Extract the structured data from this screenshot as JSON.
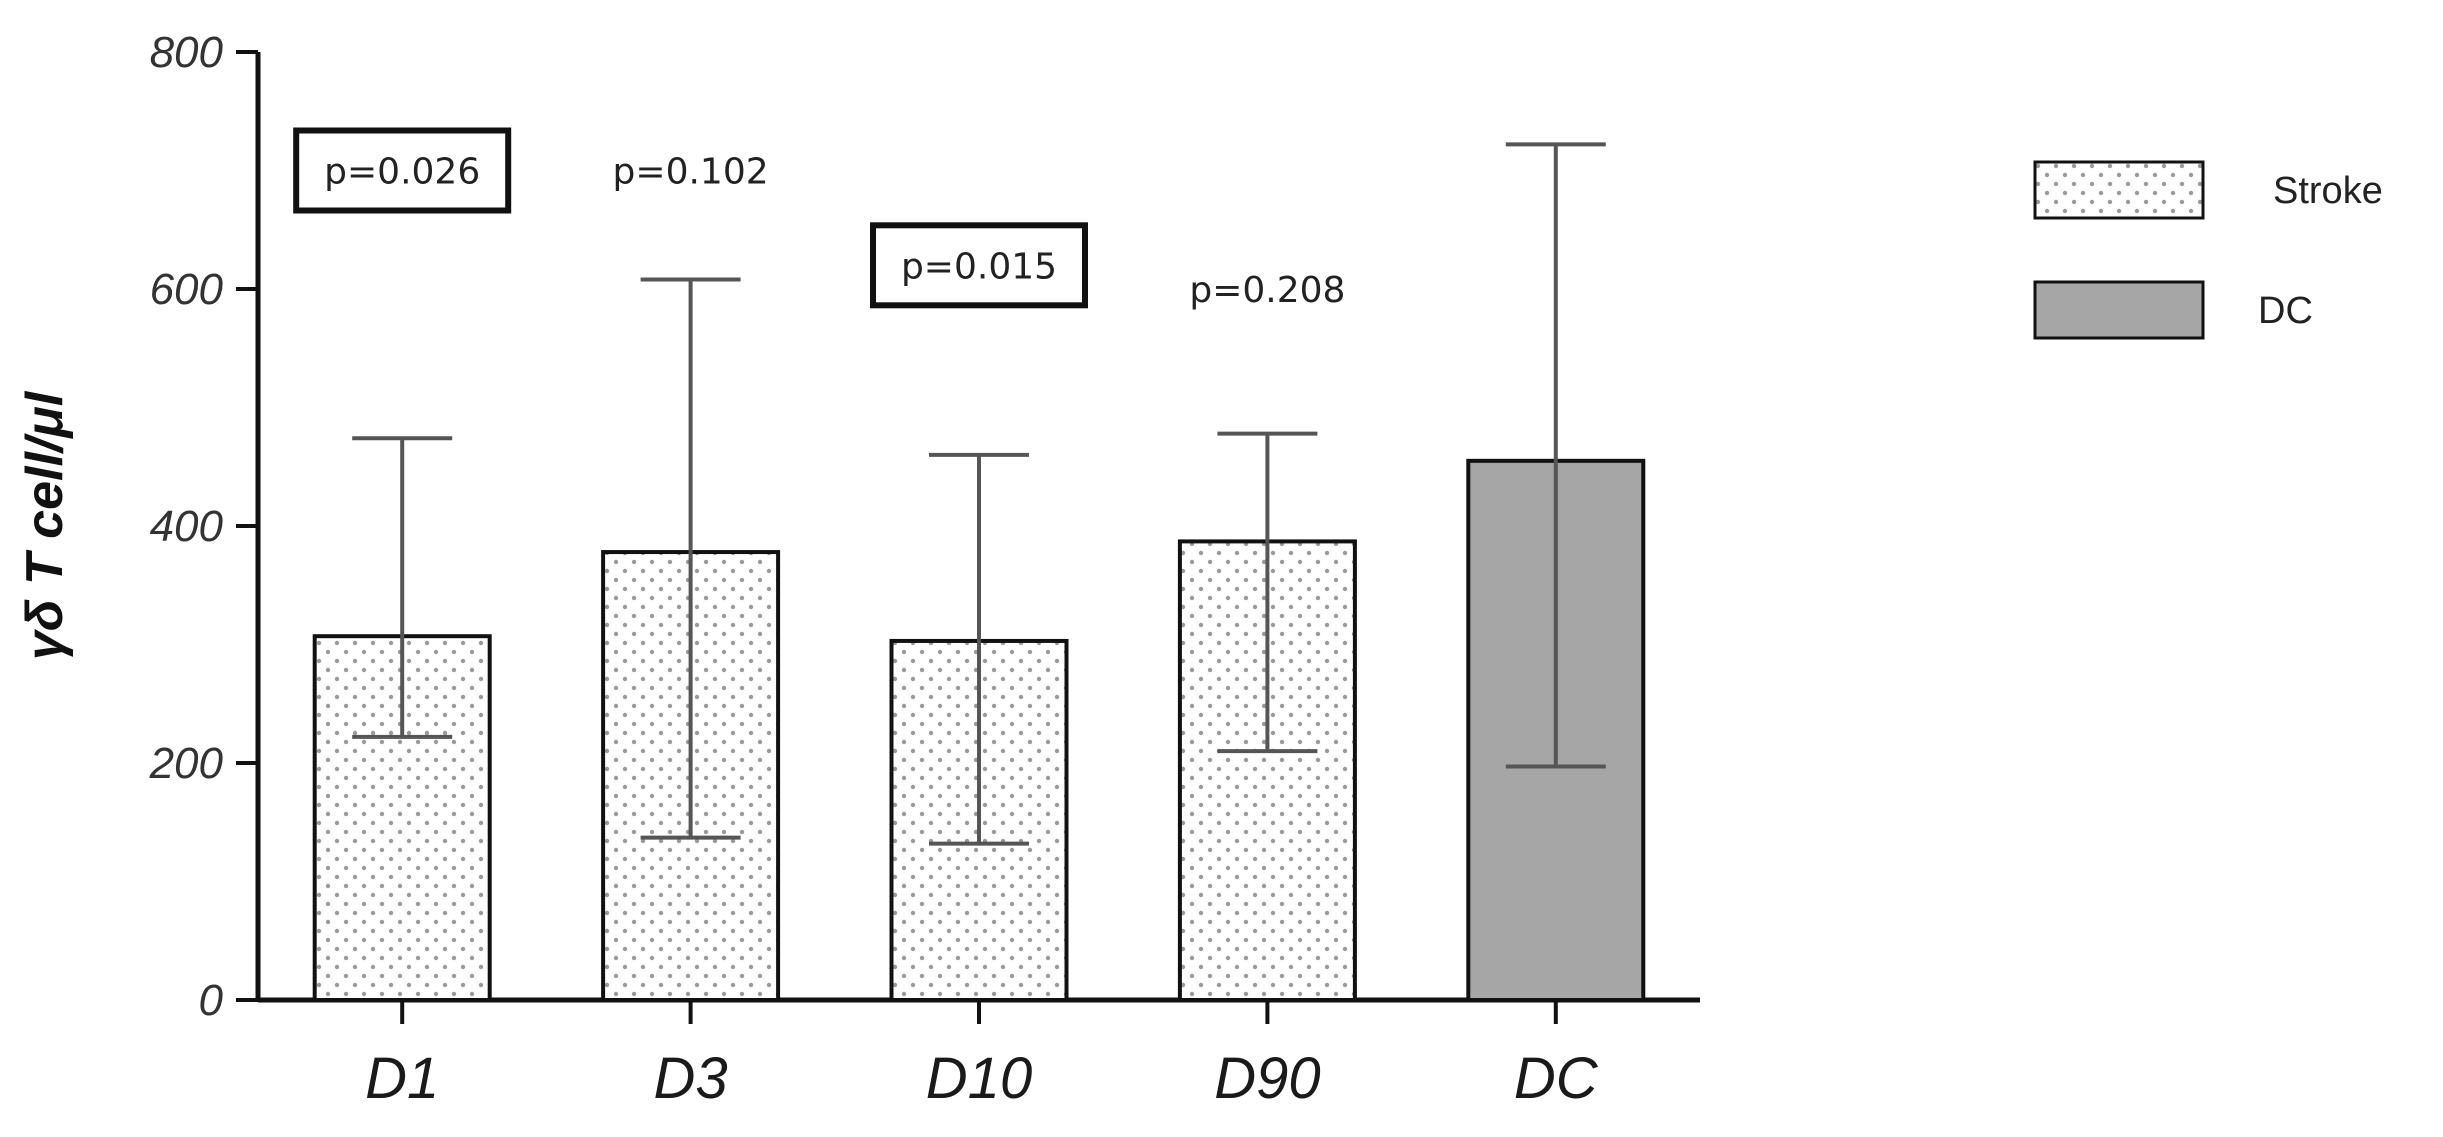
{
  "chart_data": {
    "type": "bar",
    "categories": [
      "D1",
      "D3",
      "D10",
      "D90",
      "DC"
    ],
    "series": [
      {
        "name": "Stroke",
        "values": [
          307,
          378,
          303,
          387,
          null
        ],
        "error_low": [
          222,
          137,
          132,
          210,
          null
        ],
        "error_high": [
          474,
          608,
          460,
          478,
          null
        ],
        "pattern": "dotted",
        "color": "#ffffff"
      },
      {
        "name": "DC",
        "values": [
          null,
          null,
          null,
          null,
          455
        ],
        "error_low": [
          null,
          null,
          null,
          null,
          197
        ],
        "error_high": [
          null,
          null,
          null,
          null,
          722
        ],
        "pattern": "solid",
        "color": "#a6a6a6"
      }
    ],
    "ylabel": "γδ T cell/μl",
    "xlabel": "",
    "ylim": [
      0,
      800
    ],
    "yticks": [
      "0",
      "200",
      "400",
      "600",
      "800"
    ],
    "annotations": [
      {
        "category": "D1",
        "text": "p=0.026",
        "boxed": true,
        "y": 700
      },
      {
        "category": "D3",
        "text": "p=0.102",
        "boxed": false,
        "y": 700
      },
      {
        "category": "D10",
        "text": "p=0.015",
        "boxed": true,
        "y": 620
      },
      {
        "category": "D90",
        "text": "p=0.208",
        "boxed": false,
        "y": 600
      }
    ],
    "legend": {
      "position": "top-right",
      "entries": [
        "Stroke",
        "DC"
      ]
    },
    "grid": false
  }
}
